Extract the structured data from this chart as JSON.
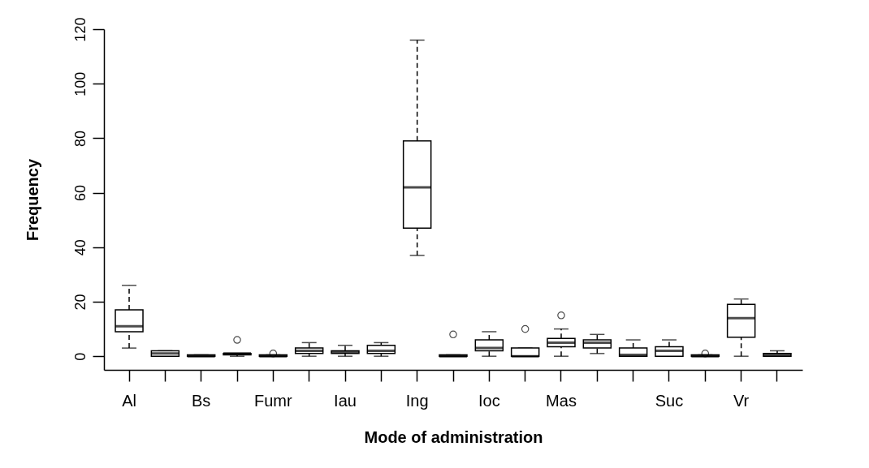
{
  "chart_data": {
    "type": "box",
    "xlabel": "Mode of administration",
    "ylabel": "Frequency",
    "categories": [
      "Al",
      null,
      "Bs",
      null,
      "Fumr",
      null,
      "Iau",
      null,
      "Ing",
      null,
      "Ioc",
      null,
      "Mas",
      null,
      null,
      "Suc",
      null,
      "Vr",
      null
    ],
    "ylim": [
      -5,
      120
    ],
    "yticks": [
      0,
      20,
      40,
      60,
      80,
      100,
      120
    ],
    "grid": false,
    "line_style": "dashed",
    "boxes": [
      {
        "low": 3,
        "q1": 9,
        "median": 11,
        "q3": 17,
        "high": 26
      },
      {
        "low": 0,
        "q1": 0,
        "median": 1,
        "q3": 2,
        "high": 2
      },
      {
        "low": 0,
        "q1": 0,
        "median": 0,
        "q3": 0.5,
        "high": 0.5
      },
      {
        "low": 0,
        "q1": 0.5,
        "median": 1,
        "q3": 1,
        "high": 1,
        "outliers": [
          6
        ]
      },
      {
        "low": 0,
        "q1": 0,
        "median": 0,
        "q3": 0.5,
        "high": 0.5,
        "outliers": [
          1
        ]
      },
      {
        "low": 0,
        "q1": 1,
        "median": 2,
        "q3": 3,
        "high": 5
      },
      {
        "low": 0,
        "q1": 1,
        "median": 1.5,
        "q3": 2,
        "high": 4
      },
      {
        "low": 0,
        "q1": 1,
        "median": 2,
        "q3": 4,
        "high": 5
      },
      {
        "low": 37,
        "q1": 47,
        "median": 62,
        "q3": 79,
        "high": 116
      },
      {
        "low": 0,
        "q1": 0,
        "median": 0,
        "q3": 0.5,
        "high": 0.5,
        "outliers": [
          8
        ]
      },
      {
        "low": 0,
        "q1": 2,
        "median": 3,
        "q3": 6,
        "high": 9
      },
      {
        "low": 0,
        "q1": 0,
        "median": 0,
        "q3": 3,
        "high": 3,
        "outliers": [
          10
        ]
      },
      {
        "low": 0,
        "q1": 3.5,
        "median": 5,
        "q3": 6.5,
        "high": 10,
        "outliers": [
          15
        ]
      },
      {
        "low": 1,
        "q1": 3,
        "median": 5,
        "q3": 6,
        "high": 8
      },
      {
        "low": 0,
        "q1": 0,
        "median": 0.5,
        "q3": 3,
        "high": 6
      },
      {
        "low": 0,
        "q1": 0,
        "median": 2,
        "q3": 3.5,
        "high": 6
      },
      {
        "low": 0,
        "q1": 0,
        "median": 0,
        "q3": 0.5,
        "high": 0.5,
        "outliers": [
          1
        ]
      },
      {
        "low": 0,
        "q1": 7,
        "median": 14,
        "q3": 19,
        "high": 21
      },
      {
        "low": 0,
        "q1": 0,
        "median": 0.5,
        "q3": 1,
        "high": 2
      }
    ]
  }
}
